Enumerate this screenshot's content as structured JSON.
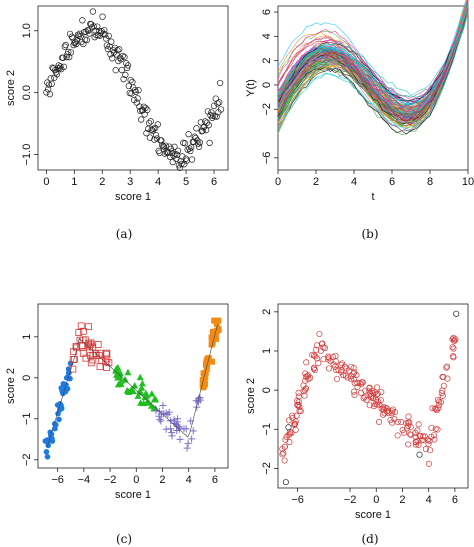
{
  "chart_data": [
    {
      "panel": "a",
      "type": "scatter",
      "caption": "(a)",
      "xlabel": "score 1",
      "ylabel": "score 2",
      "xlim": [
        -0.3,
        6.5
      ],
      "ylim": [
        -1.25,
        1.4
      ],
      "xticks": [
        0,
        1,
        2,
        3,
        4,
        5,
        6
      ],
      "yticks": [
        -1.0,
        0.0,
        1.0
      ],
      "ytick_labels": [
        "-1.0",
        "0.0",
        "1.0"
      ],
      "marker": "open-circle",
      "colors": {
        "points": "#222222"
      },
      "points_rule": "y = sin(x) + noise, x in [0, 6.3], 200 points"
    },
    {
      "panel": "b",
      "type": "line",
      "caption": "(b)",
      "xlabel": "t",
      "ylabel": "Y(t)",
      "xlim": [
        0,
        10
      ],
      "ylim": [
        -7,
        6.5
      ],
      "xticks": [
        0,
        2,
        4,
        6,
        8,
        10
      ],
      "yticks": [
        -6,
        -2,
        0,
        2,
        4,
        6
      ],
      "marker": "multicolour curves",
      "curve_rule": "Y(t) = 2.5 sin(0.6 t) + c (t - 5)^2-ish cubic shape, many noisy replicates",
      "colors": [
        "#1f77b4",
        "#ff7f0e",
        "#2ca02c",
        "#d62728",
        "#9467bd",
        "#8c564b",
        "#e377c2",
        "#17becf",
        "#bcbd22",
        "#00bfff",
        "#ff1493",
        "#32cd32",
        "#ff8c00",
        "#8a2be2",
        "#000000",
        "#00ced1"
      ]
    },
    {
      "panel": "c",
      "type": "scatter",
      "caption": "(c)",
      "xlabel": "score 1",
      "ylabel": "score 2",
      "xlim": [
        -7.5,
        7
      ],
      "ylim": [
        -2.2,
        1.8
      ],
      "xticks": [
        -6,
        -4,
        -2,
        0,
        2,
        4,
        6
      ],
      "yticks": [
        -2,
        -1,
        0,
        1
      ],
      "groups": [
        {
          "marker": "filled-circle",
          "color": "#1e7be0",
          "x_range": [
            -7,
            -5
          ]
        },
        {
          "marker": "open-square",
          "color": "#d33a3a",
          "x_range": [
            -5,
            -2
          ]
        },
        {
          "marker": "filled-triangle",
          "color": "#1fbf1f",
          "x_range": [
            -2,
            1.5
          ]
        },
        {
          "marker": "plus",
          "color": "#7f6fc9",
          "x_range": [
            1.5,
            5
          ]
        },
        {
          "marker": "filled-square",
          "color": "#f28a14",
          "x_range": [
            5,
            6.3
          ]
        }
      ]
    },
    {
      "panel": "d",
      "type": "scatter",
      "caption": "(d)",
      "xlabel": "score 1",
      "ylabel": "score 2",
      "xlim": [
        -7.5,
        7
      ],
      "ylim": [
        -2.5,
        2.2
      ],
      "xticks": [
        -6,
        -2,
        0,
        2,
        4,
        6
      ],
      "yticks": [
        -2,
        -1,
        0,
        1,
        2
      ],
      "marker": "open-circle",
      "colors": {
        "points": "#d33a3a",
        "outliers": "#222222"
      }
    }
  ]
}
